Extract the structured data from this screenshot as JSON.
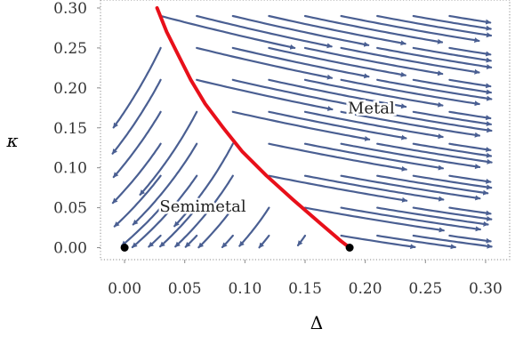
{
  "chart_data": {
    "type": "streamplot",
    "title": "",
    "xlabel": "Δ",
    "ylabel": "κ",
    "xlim": [
      -0.02,
      0.32
    ],
    "ylim": [
      -0.015,
      0.31
    ],
    "x_ticks": [
      "0.00",
      "0.05",
      "0.10",
      "0.15",
      "0.20",
      "0.25",
      "0.30"
    ],
    "y_ticks": [
      "0.00",
      "0.05",
      "0.10",
      "0.15",
      "0.20",
      "0.25",
      "0.30"
    ],
    "x_tick_values": [
      0,
      0.05,
      0.1,
      0.15,
      0.2,
      0.25,
      0.3
    ],
    "y_tick_values": [
      0,
      0.05,
      0.1,
      0.15,
      0.2,
      0.25,
      0.3
    ],
    "grid": false,
    "frame": "dotted",
    "region_labels": [
      {
        "text": "Metal",
        "x": 0.205,
        "y": 0.168
      },
      {
        "text": "Semimetal",
        "x": 0.065,
        "y": 0.045
      }
    ],
    "separatrix": {
      "color": "#e8101a",
      "points": [
        [
          0.027,
          0.3
        ],
        [
          0.035,
          0.27
        ],
        [
          0.045,
          0.24
        ],
        [
          0.055,
          0.21
        ],
        [
          0.067,
          0.18
        ],
        [
          0.082,
          0.15
        ],
        [
          0.098,
          0.12
        ],
        [
          0.118,
          0.09
        ],
        [
          0.14,
          0.06
        ],
        [
          0.163,
          0.03
        ],
        [
          0.18,
          0.008
        ],
        [
          0.187,
          0.0
        ]
      ]
    },
    "fixed_points": [
      {
        "x": 0.0,
        "y": 0.0
      },
      {
        "x": 0.187,
        "y": 0.0
      }
    ],
    "stream_color": "#4a5f92",
    "stream_points": [
      {
        "x": 0.03,
        "y": 0.29
      },
      {
        "x": 0.06,
        "y": 0.29
      },
      {
        "x": 0.09,
        "y": 0.29
      },
      {
        "x": 0.12,
        "y": 0.29
      },
      {
        "x": 0.15,
        "y": 0.29
      },
      {
        "x": 0.18,
        "y": 0.29
      },
      {
        "x": 0.21,
        "y": 0.29
      },
      {
        "x": 0.24,
        "y": 0.29
      },
      {
        "x": 0.27,
        "y": 0.29
      },
      {
        "x": 0.03,
        "y": 0.25
      },
      {
        "x": 0.06,
        "y": 0.25
      },
      {
        "x": 0.09,
        "y": 0.25
      },
      {
        "x": 0.12,
        "y": 0.25
      },
      {
        "x": 0.15,
        "y": 0.25
      },
      {
        "x": 0.18,
        "y": 0.25
      },
      {
        "x": 0.21,
        "y": 0.25
      },
      {
        "x": 0.24,
        "y": 0.25
      },
      {
        "x": 0.27,
        "y": 0.25
      },
      {
        "x": 0.03,
        "y": 0.21
      },
      {
        "x": 0.06,
        "y": 0.21
      },
      {
        "x": 0.09,
        "y": 0.21
      },
      {
        "x": 0.12,
        "y": 0.21
      },
      {
        "x": 0.15,
        "y": 0.21
      },
      {
        "x": 0.18,
        "y": 0.21
      },
      {
        "x": 0.21,
        "y": 0.21
      },
      {
        "x": 0.24,
        "y": 0.21
      },
      {
        "x": 0.27,
        "y": 0.21
      },
      {
        "x": 0.03,
        "y": 0.17
      },
      {
        "x": 0.06,
        "y": 0.17
      },
      {
        "x": 0.09,
        "y": 0.17
      },
      {
        "x": 0.12,
        "y": 0.17
      },
      {
        "x": 0.15,
        "y": 0.17
      },
      {
        "x": 0.18,
        "y": 0.17
      },
      {
        "x": 0.21,
        "y": 0.17
      },
      {
        "x": 0.24,
        "y": 0.17
      },
      {
        "x": 0.27,
        "y": 0.17
      },
      {
        "x": 0.03,
        "y": 0.13
      },
      {
        "x": 0.06,
        "y": 0.13
      },
      {
        "x": 0.09,
        "y": 0.13
      },
      {
        "x": 0.12,
        "y": 0.13
      },
      {
        "x": 0.15,
        "y": 0.13
      },
      {
        "x": 0.18,
        "y": 0.13
      },
      {
        "x": 0.21,
        "y": 0.13
      },
      {
        "x": 0.24,
        "y": 0.13
      },
      {
        "x": 0.27,
        "y": 0.13
      },
      {
        "x": 0.03,
        "y": 0.09
      },
      {
        "x": 0.06,
        "y": 0.09
      },
      {
        "x": 0.09,
        "y": 0.09
      },
      {
        "x": 0.12,
        "y": 0.09
      },
      {
        "x": 0.15,
        "y": 0.09
      },
      {
        "x": 0.18,
        "y": 0.09
      },
      {
        "x": 0.21,
        "y": 0.09
      },
      {
        "x": 0.24,
        "y": 0.09
      },
      {
        "x": 0.27,
        "y": 0.09
      },
      {
        "x": 0.03,
        "y": 0.05
      },
      {
        "x": 0.06,
        "y": 0.05
      },
      {
        "x": 0.09,
        "y": 0.05
      },
      {
        "x": 0.12,
        "y": 0.05
      },
      {
        "x": 0.15,
        "y": 0.05
      },
      {
        "x": 0.18,
        "y": 0.05
      },
      {
        "x": 0.21,
        "y": 0.05
      },
      {
        "x": 0.24,
        "y": 0.05
      },
      {
        "x": 0.27,
        "y": 0.05
      },
      {
        "x": 0.03,
        "y": 0.015
      },
      {
        "x": 0.06,
        "y": 0.015
      },
      {
        "x": 0.09,
        "y": 0.015
      },
      {
        "x": 0.12,
        "y": 0.015
      },
      {
        "x": 0.15,
        "y": 0.015
      },
      {
        "x": 0.18,
        "y": 0.015
      },
      {
        "x": 0.21,
        "y": 0.015
      },
      {
        "x": 0.24,
        "y": 0.015
      },
      {
        "x": 0.27,
        "y": 0.015
      }
    ]
  }
}
